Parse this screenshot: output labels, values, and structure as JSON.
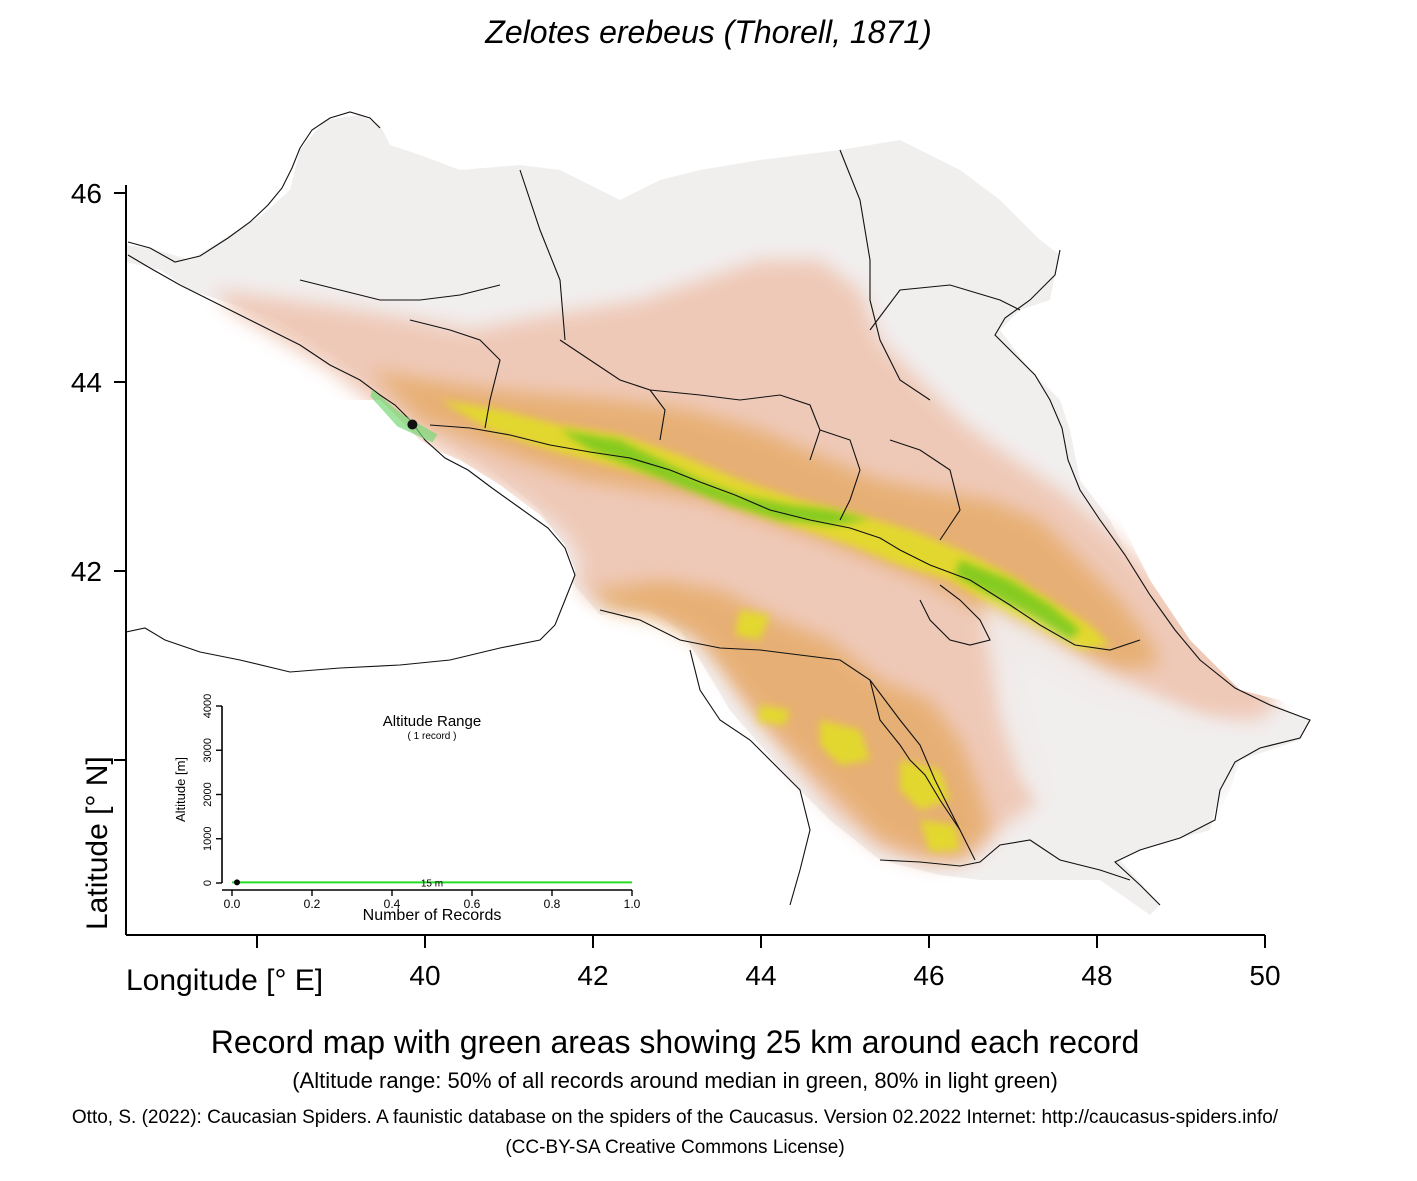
{
  "title": "Zelotes erebeus (Thorell, 1871)",
  "axes": {
    "xlabel": "Longitude [° E]",
    "ylabel": "Latitude [° N]",
    "xticks": [
      "40",
      "42",
      "44",
      "46",
      "48",
      "50"
    ],
    "yticks": [
      "46",
      "44",
      "42"
    ]
  },
  "records": [
    {
      "lon": 39.85,
      "lat": 43.55
    }
  ],
  "inset": {
    "title": "Altitude Range",
    "subtitle": "( 1 record )",
    "ylabel": "Altitude [m]",
    "xlabel": "Number of Records",
    "yticks": [
      "0",
      "1000",
      "2000",
      "3000",
      "4000"
    ],
    "xticks": [
      "0.0",
      "0.2",
      "0.4",
      "0.6",
      "0.8",
      "1.0"
    ],
    "altitude_label": "15  m",
    "altitude_value_m": 15,
    "record_count": 1
  },
  "caption": {
    "main": "Record map with green areas showing 25 km around each record",
    "sub": "(Altitude range: 50% of all records around median in green, 80% in light green)",
    "citation": "Otto, S. (2022): Caucasian Spiders. A faunistic database on the spiders of the Caucasus. Version 02.2022 Internet: http://caucasus-spiders.info/",
    "license": "(CC-BY-SA Creative Commons License)"
  },
  "colors": {
    "lowland": "#f1eeee",
    "foothill": "#efc8b6",
    "mountain": "#e6ad6e",
    "high_mountain": "#e2df20",
    "summit": "#6fc81e",
    "record_buffer": "#78d878",
    "inset_line": "#22dd22"
  }
}
